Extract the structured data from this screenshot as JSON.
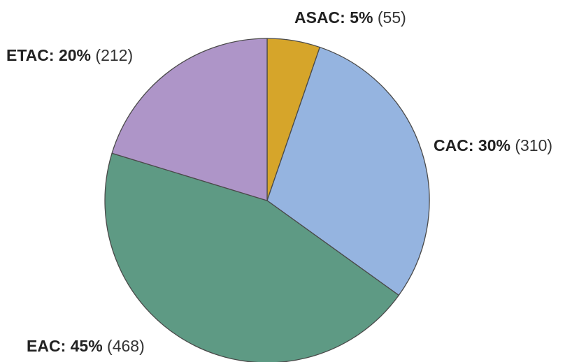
{
  "chart_data": {
    "type": "pie",
    "title": "",
    "slices": [
      {
        "name": "ASAC",
        "percent": "5%",
        "count": "(55)",
        "value": 55,
        "color": "#D6A52A"
      },
      {
        "name": "CAC",
        "percent": "30%",
        "count": "(310)",
        "value": 310,
        "color": "#95B4E0"
      },
      {
        "name": "EAC",
        "percent": "45%",
        "count": "(468)",
        "value": 468,
        "color": "#5E9A84"
      },
      {
        "name": "ETAC",
        "percent": "20%",
        "count": "(212)",
        "value": 212,
        "color": "#AE95C8"
      }
    ],
    "start_angle_deg": 0,
    "direction": "clockwise",
    "legend": "none"
  }
}
